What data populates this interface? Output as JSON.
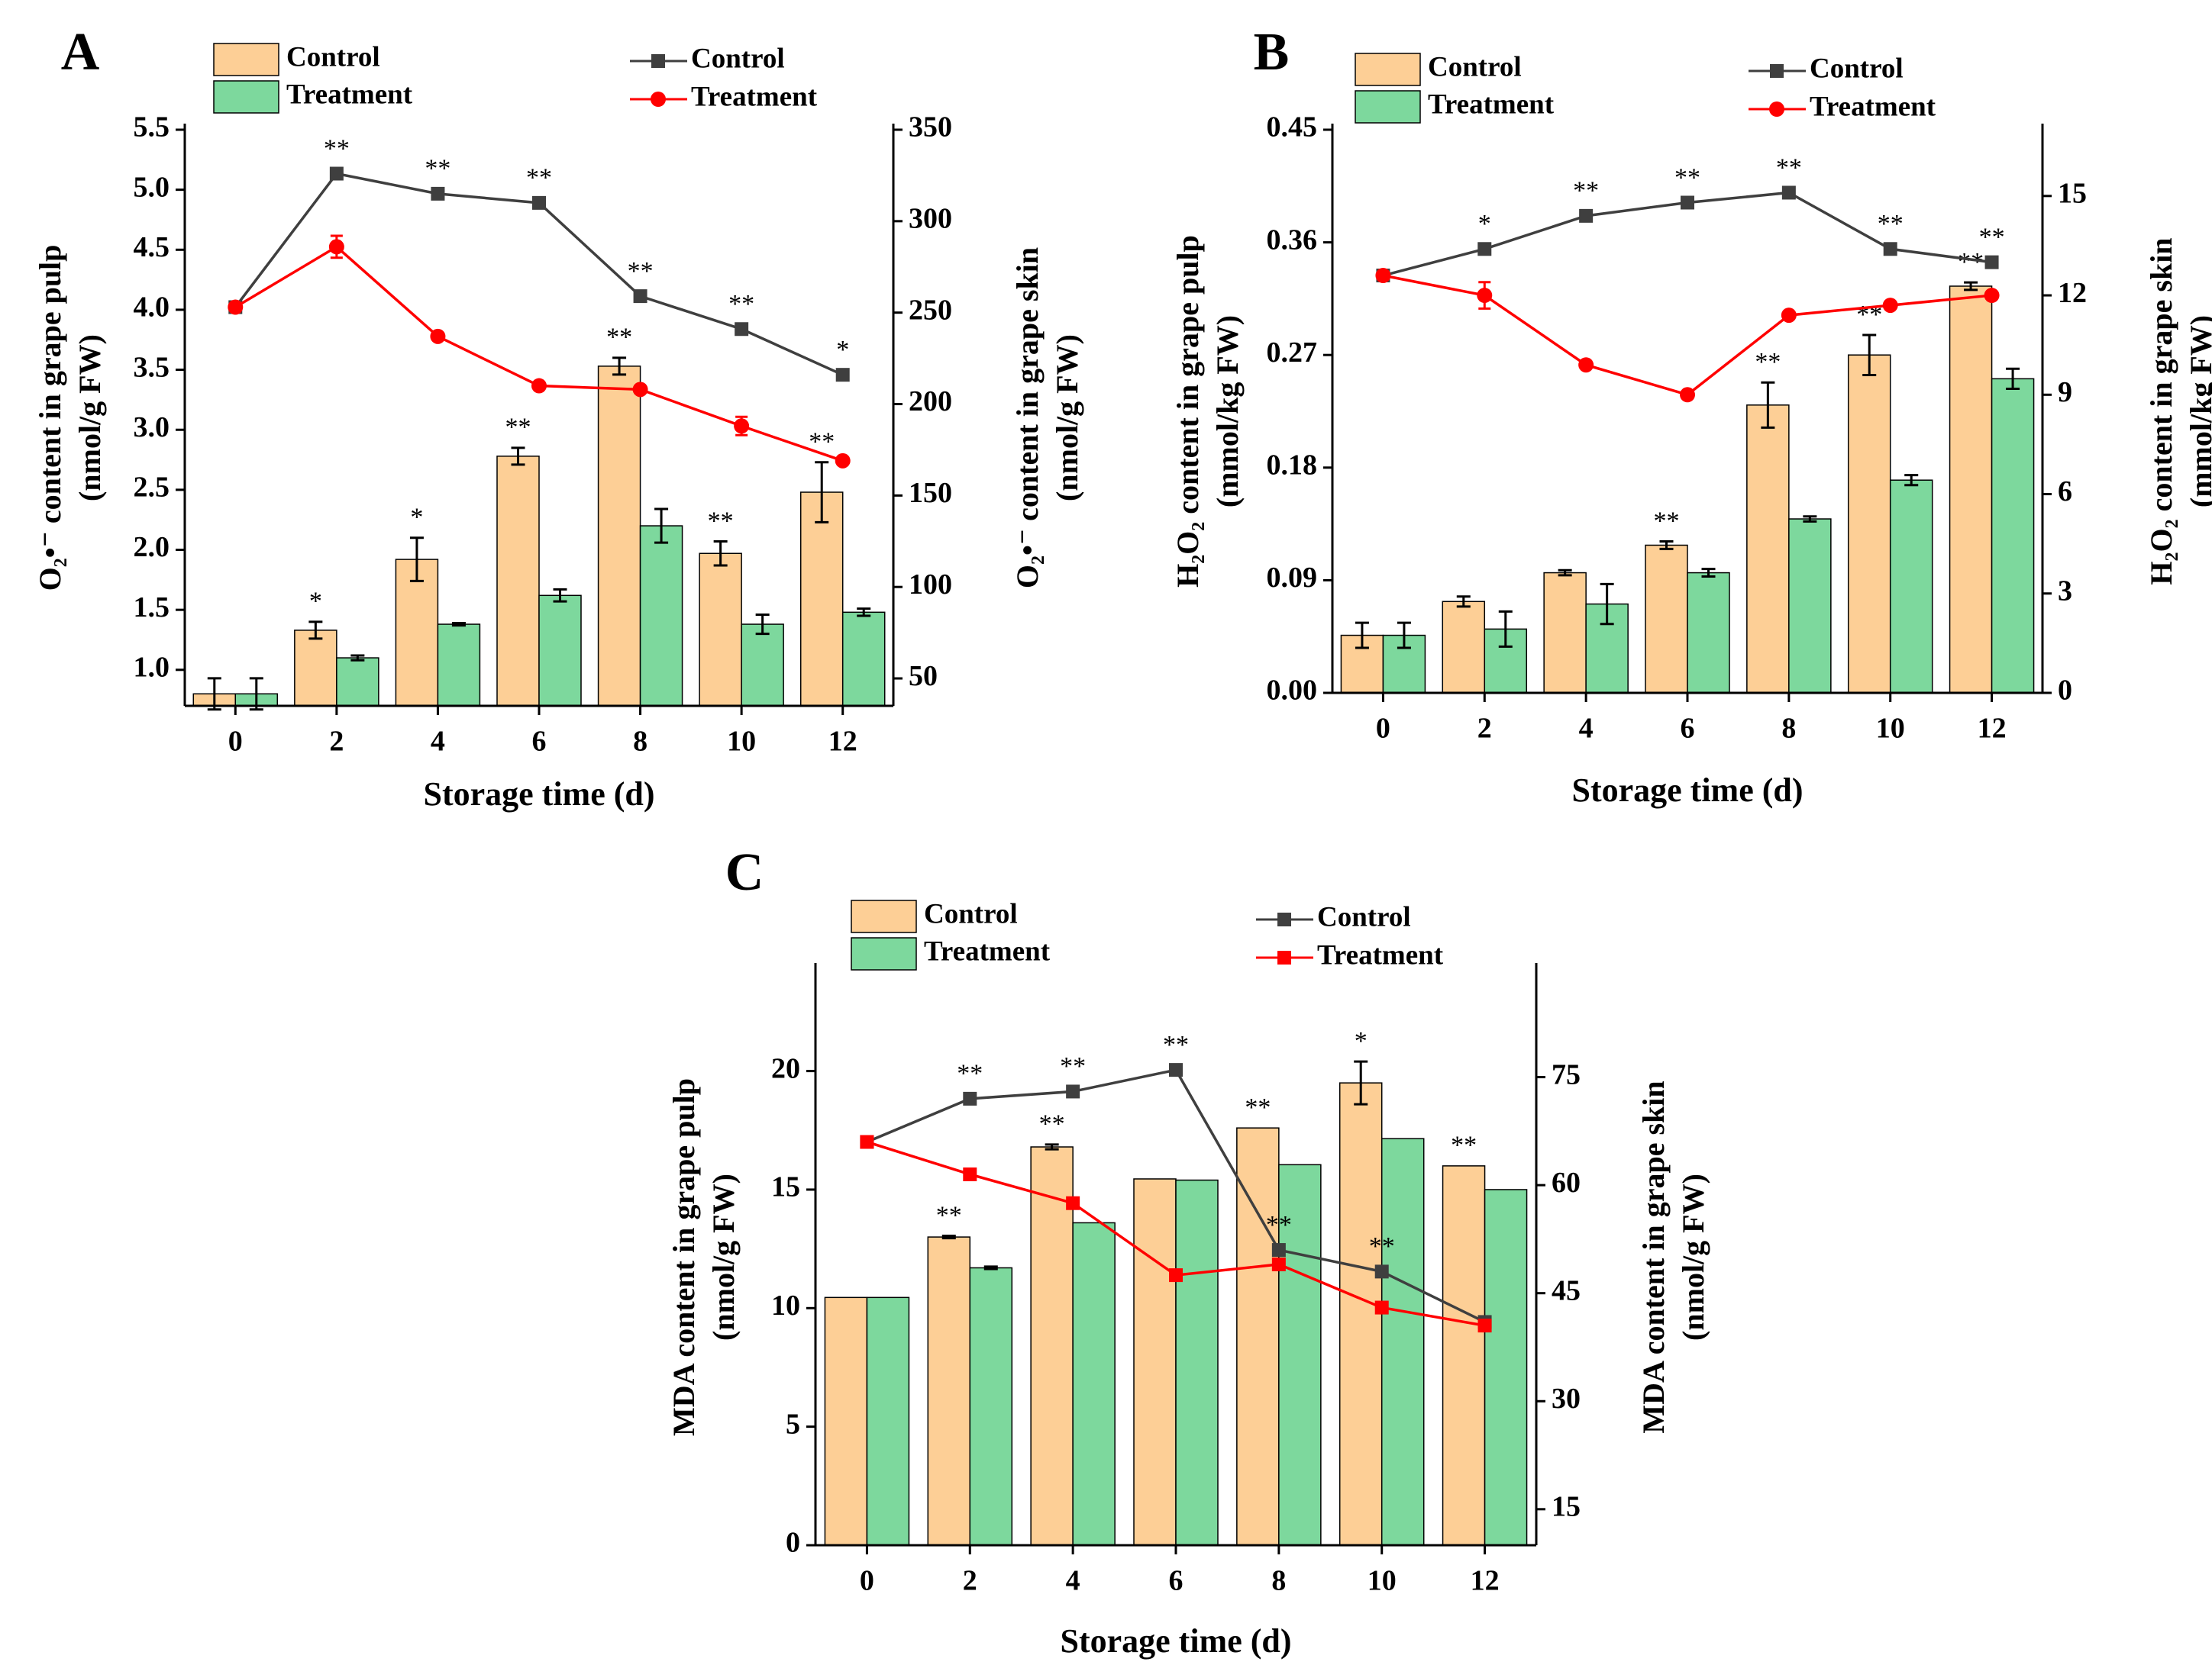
{
  "colors": {
    "bar_control": "#FDCF96",
    "bar_treatment": "#7DD89D",
    "line_control": "#3f3f3f",
    "line_treatment": "#ff0000",
    "axis": "#000000"
  },
  "chart_data": [
    {
      "panel": "A",
      "type": "bar+line",
      "xlabel": "Storage time (d)",
      "categories": [
        "0",
        "2",
        "4",
        "6",
        "8",
        "10",
        "12"
      ],
      "left_axis": {
        "title_line1": "O₂•⁻ content in grape pulp",
        "title_line2": "(nmol/g FW)",
        "min": 0.7,
        "max": 5.5,
        "ticks": [
          1.0,
          1.5,
          2.0,
          2.5,
          3.0,
          3.5,
          4.0,
          4.5,
          5.0,
          5.5
        ],
        "tick_labels": [
          "1.0",
          "1.5",
          "2.0",
          "2.5",
          "3.0",
          "3.5",
          "4.0",
          "4.5",
          "5.0",
          "5.5"
        ]
      },
      "right_axis": {
        "title_line1": "O₂•⁻ content in grape skin",
        "title_line2": "(nmol/g FW)",
        "min": 35,
        "max": 350,
        "ticks": [
          50,
          100,
          150,
          200,
          250,
          300,
          350
        ],
        "tick_labels": [
          "50",
          "100",
          "150",
          "200",
          "250",
          "300",
          "350"
        ]
      },
      "bar_legend": [
        "Control",
        "Treatment"
      ],
      "line_legend": [
        "Control",
        "Treatment"
      ],
      "bars": {
        "control": [
          0.8,
          1.33,
          1.92,
          2.78,
          3.53,
          1.97,
          2.48
        ],
        "control_err": [
          0.13,
          0.07,
          0.18,
          0.07,
          0.07,
          0.1,
          0.25
        ],
        "treatment": [
          0.8,
          1.1,
          1.38,
          1.62,
          2.2,
          1.38,
          1.48
        ],
        "treatment_err": [
          0.13,
          0.02,
          0.01,
          0.05,
          0.14,
          0.08,
          0.03
        ],
        "sig": [
          "",
          "*",
          "*",
          "**",
          "**",
          "**",
          "**"
        ]
      },
      "lines": {
        "marker_control": "square",
        "marker_treatment": "circle",
        "control": [
          253,
          326,
          315,
          310,
          259,
          241,
          216
        ],
        "control_err": [
          0,
          0,
          0,
          0,
          0,
          0,
          0
        ],
        "treatment": [
          253,
          286,
          237,
          210,
          208,
          188,
          169
        ],
        "treatment_err": [
          0,
          6,
          0,
          0,
          0,
          5,
          0
        ],
        "sig": [
          "",
          "**",
          "**",
          "**",
          "**",
          "**",
          "*"
        ]
      }
    },
    {
      "panel": "B",
      "type": "bar+line",
      "xlabel": "Storage time (d)",
      "categories": [
        "0",
        "2",
        "4",
        "6",
        "8",
        "10",
        "12"
      ],
      "left_axis": {
        "title_line1": "H₂O₂ content in grape pulp",
        "title_line2": "(mmol/kg FW)",
        "min": 0,
        "max": 0.45,
        "ticks": [
          0,
          0.09,
          0.18,
          0.27,
          0.36,
          0.45
        ],
        "tick_labels": [
          "0.00",
          "0.09",
          "0.18",
          "0.27",
          "0.36",
          "0.45"
        ]
      },
      "right_axis": {
        "title_line1": "H₂O₂ content in grape skin",
        "title_line2": "(mmol/kg FW)",
        "min": 0,
        "max": 17,
        "ticks": [
          0,
          3,
          6,
          9,
          12,
          15
        ],
        "tick_labels": [
          "0",
          "3",
          "6",
          "9",
          "12",
          "15"
        ]
      },
      "bar_legend": [
        "Control",
        "Treatment"
      ],
      "line_legend": [
        "Control",
        "Treatment"
      ],
      "bars": {
        "control": [
          0.046,
          0.073,
          0.096,
          0.118,
          0.23,
          0.27,
          0.325
        ],
        "control_err": [
          0.01,
          0.004,
          0.002,
          0.003,
          0.018,
          0.016,
          0.003
        ],
        "treatment": [
          0.046,
          0.051,
          0.071,
          0.096,
          0.139,
          0.17,
          0.251
        ],
        "treatment_err": [
          0.01,
          0.014,
          0.016,
          0.003,
          0.002,
          0.004,
          0.008
        ],
        "sig": [
          "",
          "",
          "",
          "**",
          "**",
          "**",
          "**"
        ]
      },
      "lines": {
        "marker_control": "square",
        "marker_treatment": "circle",
        "control": [
          12.6,
          13.4,
          14.4,
          14.8,
          15.1,
          13.4,
          13.0
        ],
        "control_err": [
          0,
          0,
          0,
          0,
          0,
          0,
          0
        ],
        "treatment": [
          12.6,
          12.0,
          9.9,
          9.0,
          11.4,
          11.7,
          12.0
        ],
        "treatment_err": [
          0,
          0.4,
          0,
          0,
          0,
          0,
          0
        ],
        "sig": [
          "",
          "*",
          "**",
          "**",
          "**",
          "**",
          "**"
        ]
      }
    },
    {
      "panel": "C",
      "type": "bar+line",
      "xlabel": "Storage time (d)",
      "categories": [
        "0",
        "2",
        "4",
        "6",
        "8",
        "10",
        "12"
      ],
      "left_axis": {
        "title_line1": "MDA content in grape pulp",
        "title_line2": "(nmol/g FW)",
        "min": 0,
        "max": 24.3,
        "ticks": [
          0,
          5,
          10,
          15,
          20
        ],
        "tick_labels": [
          "0",
          "5",
          "10",
          "15",
          "20"
        ]
      },
      "right_axis": {
        "title_line1": "MDA content in grape skin",
        "title_line2": "(nmol/g FW)",
        "min": 10,
        "max": 90,
        "ticks": [
          15,
          30,
          45,
          60,
          75
        ],
        "tick_labels": [
          "15",
          "30",
          "45",
          "60",
          "75"
        ]
      },
      "bar_legend": [
        "Control",
        "Treatment"
      ],
      "line_legend": [
        "Control",
        "Treatment"
      ],
      "bars": {
        "control": [
          10.45,
          13.0,
          16.8,
          15.45,
          17.6,
          19.5,
          16.0
        ],
        "control_err": [
          0,
          0.05,
          0.1,
          0,
          0,
          0.9,
          0
        ],
        "treatment": [
          10.45,
          11.7,
          13.6,
          15.4,
          16.05,
          17.15,
          15.0
        ],
        "treatment_err": [
          0,
          0.05,
          0,
          0,
          0,
          0,
          0
        ],
        "sig": [
          "",
          "**",
          "**",
          "",
          "**",
          "*",
          "**"
        ]
      },
      "lines": {
        "marker_control": "square",
        "marker_treatment": "square",
        "control": [
          66,
          72,
          73,
          76,
          51,
          48,
          41
        ],
        "control_err": [
          0,
          0,
          0,
          0,
          0,
          0,
          0
        ],
        "treatment": [
          66,
          61.5,
          57.5,
          47.5,
          49,
          43,
          40.5
        ],
        "treatment_err": [
          0,
          0,
          0,
          0,
          0,
          0,
          0
        ],
        "sig": [
          "",
          "**",
          "**",
          "**",
          "**",
          "**",
          ""
        ]
      }
    }
  ]
}
